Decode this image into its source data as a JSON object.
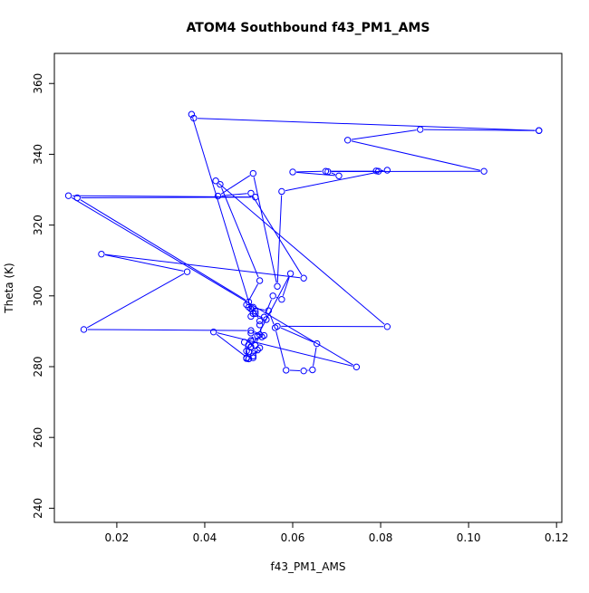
{
  "chart_data": {
    "type": "line",
    "title": "ATOM4 Southbound f43_PM1_AMS",
    "xlabel": "f43_PM1_AMS",
    "ylabel": "Theta (K)",
    "xlim": [
      0.0058,
      0.1212
    ],
    "ylim": [
      236,
      368.5
    ],
    "xticks": [
      0.02,
      0.04,
      0.06,
      0.08,
      0.1,
      0.12
    ],
    "xtick_labels": [
      "0.02",
      "0.04",
      "0.06",
      "0.08",
      "0.10",
      "0.12"
    ],
    "yticks": [
      240,
      260,
      280,
      300,
      320,
      340,
      360
    ],
    "ytick_labels": [
      "240",
      "260",
      "280",
      "300",
      "320",
      "340",
      "360"
    ],
    "grid": false,
    "series": [
      {
        "name": "f43_PM1_AMS",
        "color": "#0000ff",
        "marker": "open-circle",
        "x": [
          0.116,
          0.089,
          0.0725,
          0.1035,
          0.068,
          0.0705,
          0.06,
          0.0675,
          0.0795,
          0.079,
          0.0815,
          0.0575,
          0.0565,
          0.051,
          0.043,
          0.0505,
          0.0625,
          0.0165,
          0.036,
          0.0125,
          0.0505,
          0.0535,
          0.0505,
          0.0515,
          0.0525,
          0.0505,
          0.052,
          0.05,
          0.0495,
          0.051,
          0.0525,
          0.05,
          0.0495,
          0.051,
          0.0505,
          0.05,
          0.0495,
          0.0505,
          0.053,
          0.0525,
          0.054,
          0.051,
          0.0515,
          0.05,
          0.0545,
          0.056,
          0.0585,
          0.0625,
          0.0645,
          0.0655,
          0.0565,
          0.0815,
          0.0425,
          0.0435,
          0.0525,
          0.0495,
          0.0515,
          0.0505,
          0.05,
          0.011,
          0.0515,
          0.009,
          0.0745,
          0.042,
          0.05,
          0.049,
          0.052,
          0.0595,
          0.0575,
          0.0555,
          0.0535,
          0.0525,
          0.051,
          0.0505,
          0.037,
          0.0375,
          0.116
        ],
        "y": [
          346.7,
          347,
          344,
          335.2,
          335.1,
          333.9,
          335,
          335.2,
          335.2,
          335.3,
          335.5,
          329.5,
          302.7,
          334.6,
          328.2,
          329,
          305,
          311.8,
          306.8,
          290.5,
          290.2,
          288.8,
          289.5,
          286,
          289,
          285.6,
          284.7,
          284.2,
          282.3,
          282.5,
          285.3,
          282.2,
          282.5,
          283,
          285.5,
          286.2,
          284.4,
          287.4,
          288.4,
          291.8,
          293.3,
          295,
          295.7,
          296.8,
          295.8,
          291,
          279,
          278.8,
          279.1,
          286.5,
          291.4,
          291.3,
          332.5,
          331.5,
          304.3,
          297.5,
          295,
          294.2,
          298.3,
          327.7,
          327.9,
          328.3,
          279.9,
          289.8,
          282.2,
          286.9,
          288.7,
          306.3,
          299,
          300,
          294,
          292.9,
          296.8,
          296.3,
          351.3,
          350.2,
          346.7
        ]
      }
    ]
  }
}
